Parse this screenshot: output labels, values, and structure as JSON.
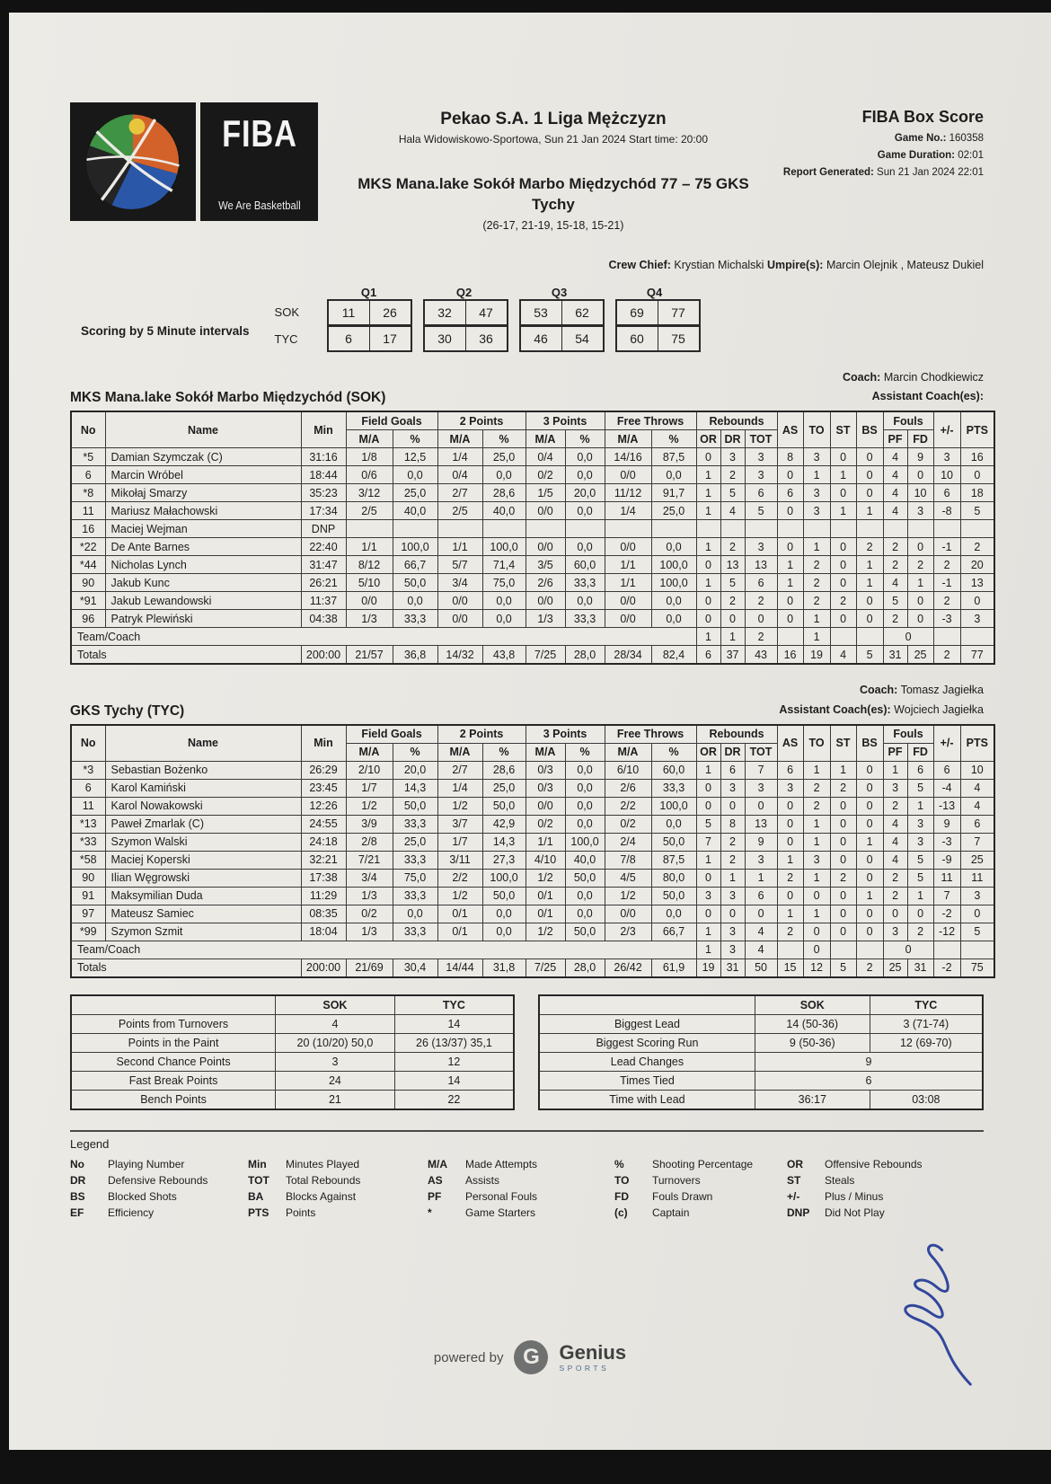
{
  "header": {
    "league": "Pekao S.A. 1 Liga Mężczyzn",
    "venue_line": "Hala Widowiskowo-Sportowa, Sun 21 Jan 2024 Start time: 20:00",
    "matchup_line1": "MKS Mana.lake Sokół Marbo Międzychód 77 – 75 GKS",
    "matchup_line2": "Tychy",
    "quarters_line": "(26-17, 21-19, 15-18, 15-21)",
    "box_score_title": "FIBA Box Score",
    "meta": [
      {
        "label": "Game No.:",
        "value": "160358"
      },
      {
        "label": "Game Duration:",
        "value": "02:01"
      },
      {
        "label": "Report Generated:",
        "value": "Sun 21 Jan 2024 22:01"
      }
    ],
    "crew": {
      "crew_chief_label": "Crew Chief:",
      "crew_chief": "Krystian Michalski",
      "umpires_label": "Umpire(s):",
      "umpires": "Marcin Olejnik , Mateusz Dukiel"
    },
    "fiba_logo_text": "FIBA",
    "fiba_logo_tagline": "We Are Basketball"
  },
  "intervals": {
    "label": "Scoring by 5 Minute intervals",
    "quarter_labels": [
      "Q1",
      "Q2",
      "Q3",
      "Q4"
    ],
    "rows": [
      {
        "team": "SOK",
        "values": [
          [
            "11",
            "26"
          ],
          [
            "32",
            "47"
          ],
          [
            "53",
            "62"
          ],
          [
            "69",
            "77"
          ]
        ]
      },
      {
        "team": "TYC",
        "values": [
          [
            "6",
            "17"
          ],
          [
            "30",
            "36"
          ],
          [
            "46",
            "54"
          ],
          [
            "60",
            "75"
          ]
        ]
      }
    ]
  },
  "table_headers": {
    "no": "No",
    "name": "Name",
    "min": "Min",
    "field_goals": "Field Goals",
    "two_points": "2 Points",
    "three_points": "3 Points",
    "free_throws": "Free Throws",
    "rebounds": "Rebounds",
    "ma": "M/A",
    "pct": "%",
    "or": "OR",
    "dr": "DR",
    "tot": "TOT",
    "as": "AS",
    "to": "TO",
    "st": "ST",
    "bs": "BS",
    "fouls": "Fouls",
    "pf": "PF",
    "fd": "FD",
    "plusminus": "+/-",
    "pts": "PTS",
    "team_coach": "Team/Coach",
    "totals": "Totals"
  },
  "teams": [
    {
      "title": "MKS Mana.lake Sokół Marbo Międzychód (SOK)",
      "coach_label": "Coach:",
      "coach": "Marcin Chodkiewicz",
      "assistant_label": "Assistant Coach(es):",
      "assistant": "",
      "players": [
        [
          "*5",
          "Damian Szymczak (C)",
          "31:16",
          "1/8",
          "12,5",
          "1/4",
          "25,0",
          "0/4",
          "0,0",
          "14/16",
          "87,5",
          "0",
          "3",
          "3",
          "8",
          "3",
          "0",
          "0",
          "4",
          "9",
          "3",
          "16"
        ],
        [
          "6",
          "Marcin Wróbel",
          "18:44",
          "0/6",
          "0,0",
          "0/4",
          "0,0",
          "0/2",
          "0,0",
          "0/0",
          "0,0",
          "1",
          "2",
          "3",
          "0",
          "1",
          "1",
          "0",
          "4",
          "0",
          "10",
          "0"
        ],
        [
          "*8",
          "Mikołaj Smarzy",
          "35:23",
          "3/12",
          "25,0",
          "2/7",
          "28,6",
          "1/5",
          "20,0",
          "11/12",
          "91,7",
          "1",
          "5",
          "6",
          "6",
          "3",
          "0",
          "0",
          "4",
          "10",
          "6",
          "18"
        ],
        [
          "11",
          "Mariusz Małachowski",
          "17:34",
          "2/5",
          "40,0",
          "2/5",
          "40,0",
          "0/0",
          "0,0",
          "1/4",
          "25,0",
          "1",
          "4",
          "5",
          "0",
          "3",
          "1",
          "1",
          "4",
          "3",
          "-8",
          "5"
        ],
        [
          "16",
          "Maciej Wejman",
          "DNP",
          "",
          "",
          "",
          "",
          "",
          "",
          "",
          "",
          "",
          "",
          "",
          "",
          "",
          "",
          "",
          "",
          "",
          "",
          ""
        ],
        [
          "*22",
          "De Ante Barnes",
          "22:40",
          "1/1",
          "100,0",
          "1/1",
          "100,0",
          "0/0",
          "0,0",
          "0/0",
          "0,0",
          "1",
          "2",
          "3",
          "0",
          "1",
          "0",
          "2",
          "2",
          "0",
          "-1",
          "2"
        ],
        [
          "*44",
          "Nicholas Lynch",
          "31:47",
          "8/12",
          "66,7",
          "5/7",
          "71,4",
          "3/5",
          "60,0",
          "1/1",
          "100,0",
          "0",
          "13",
          "13",
          "1",
          "2",
          "0",
          "1",
          "2",
          "2",
          "2",
          "20"
        ],
        [
          "90",
          "Jakub Kunc",
          "26:21",
          "5/10",
          "50,0",
          "3/4",
          "75,0",
          "2/6",
          "33,3",
          "1/1",
          "100,0",
          "1",
          "5",
          "6",
          "1",
          "2",
          "0",
          "1",
          "4",
          "1",
          "-1",
          "13"
        ],
        [
          "*91",
          "Jakub Lewandowski",
          "11:37",
          "0/0",
          "0,0",
          "0/0",
          "0,0",
          "0/0",
          "0,0",
          "0/0",
          "0,0",
          "0",
          "2",
          "2",
          "0",
          "2",
          "2",
          "0",
          "5",
          "0",
          "2",
          "0"
        ],
        [
          "96",
          "Patryk Plewiński",
          "04:38",
          "1/3",
          "33,3",
          "0/0",
          "0,0",
          "1/3",
          "33,3",
          "0/0",
          "0,0",
          "0",
          "0",
          "0",
          "0",
          "1",
          "0",
          "0",
          "2",
          "0",
          "-3",
          "3"
        ]
      ],
      "team_coach_row": {
        "or": "1",
        "dr": "1",
        "tot": "2",
        "to": "1",
        "pf": "0"
      },
      "totals": [
        "200:00",
        "21/57",
        "36,8",
        "14/32",
        "43,8",
        "7/25",
        "28,0",
        "28/34",
        "82,4",
        "6",
        "37",
        "43",
        "16",
        "19",
        "4",
        "5",
        "31",
        "25",
        "2",
        "77"
      ]
    },
    {
      "title": "GKS Tychy (TYC)",
      "coach_label": "Coach:",
      "coach": "Tomasz Jagiełka",
      "assistant_label": "Assistant Coach(es):",
      "assistant": "Wojciech Jagiełka",
      "players": [
        [
          "*3",
          "Sebastian Bożenko",
          "26:29",
          "2/10",
          "20,0",
          "2/7",
          "28,6",
          "0/3",
          "0,0",
          "6/10",
          "60,0",
          "1",
          "6",
          "7",
          "6",
          "1",
          "1",
          "0",
          "1",
          "6",
          "6",
          "10"
        ],
        [
          "6",
          "Karol Kamiński",
          "23:45",
          "1/7",
          "14,3",
          "1/4",
          "25,0",
          "0/3",
          "0,0",
          "2/6",
          "33,3",
          "0",
          "3",
          "3",
          "3",
          "2",
          "2",
          "0",
          "3",
          "5",
          "-4",
          "4"
        ],
        [
          "11",
          "Karol Nowakowski",
          "12:26",
          "1/2",
          "50,0",
          "1/2",
          "50,0",
          "0/0",
          "0,0",
          "2/2",
          "100,0",
          "0",
          "0",
          "0",
          "0",
          "2",
          "0",
          "0",
          "2",
          "1",
          "-13",
          "4"
        ],
        [
          "*13",
          "Paweł Zmarlak (C)",
          "24:55",
          "3/9",
          "33,3",
          "3/7",
          "42,9",
          "0/2",
          "0,0",
          "0/2",
          "0,0",
          "5",
          "8",
          "13",
          "0",
          "1",
          "0",
          "0",
          "4",
          "3",
          "9",
          "6"
        ],
        [
          "*33",
          "Szymon Walski",
          "24:18",
          "2/8",
          "25,0",
          "1/7",
          "14,3",
          "1/1",
          "100,0",
          "2/4",
          "50,0",
          "7",
          "2",
          "9",
          "0",
          "1",
          "0",
          "1",
          "4",
          "3",
          "-3",
          "7"
        ],
        [
          "*58",
          "Maciej Koperski",
          "32:21",
          "7/21",
          "33,3",
          "3/11",
          "27,3",
          "4/10",
          "40,0",
          "7/8",
          "87,5",
          "1",
          "2",
          "3",
          "1",
          "3",
          "0",
          "0",
          "4",
          "5",
          "-9",
          "25"
        ],
        [
          "90",
          "Ilian Węgrowski",
          "17:38",
          "3/4",
          "75,0",
          "2/2",
          "100,0",
          "1/2",
          "50,0",
          "4/5",
          "80,0",
          "0",
          "1",
          "1",
          "2",
          "1",
          "2",
          "0",
          "2",
          "5",
          "11",
          "11"
        ],
        [
          "91",
          "Maksymilian Duda",
          "11:29",
          "1/3",
          "33,3",
          "1/2",
          "50,0",
          "0/1",
          "0,0",
          "1/2",
          "50,0",
          "3",
          "3",
          "6",
          "0",
          "0",
          "0",
          "1",
          "2",
          "1",
          "7",
          "3"
        ],
        [
          "97",
          "Mateusz Samiec",
          "08:35",
          "0/2",
          "0,0",
          "0/1",
          "0,0",
          "0/1",
          "0,0",
          "0/0",
          "0,0",
          "0",
          "0",
          "0",
          "1",
          "1",
          "0",
          "0",
          "0",
          "0",
          "-2",
          "0"
        ],
        [
          "*99",
          "Szymon Szmit",
          "18:04",
          "1/3",
          "33,3",
          "0/1",
          "0,0",
          "1/2",
          "50,0",
          "2/3",
          "66,7",
          "1",
          "3",
          "4",
          "2",
          "0",
          "0",
          "0",
          "3",
          "2",
          "-12",
          "5"
        ]
      ],
      "team_coach_row": {
        "or": "1",
        "dr": "3",
        "tot": "4",
        "to": "0",
        "pf": "0"
      },
      "totals": [
        "200:00",
        "21/69",
        "30,4",
        "14/44",
        "31,8",
        "7/25",
        "28,0",
        "26/42",
        "61,9",
        "19",
        "31",
        "50",
        "15",
        "12",
        "5",
        "2",
        "25",
        "31",
        "-2",
        "75"
      ]
    }
  ],
  "summary_left": {
    "col_headers": [
      "SOK",
      "TYC"
    ],
    "rows": [
      [
        "Points from Turnovers",
        "4",
        "14"
      ],
      [
        "Points in the Paint",
        "20 (10/20) 50,0",
        "26 (13/37) 35,1"
      ],
      [
        "Second Chance Points",
        "3",
        "12"
      ],
      [
        "Fast Break Points",
        "24",
        "14"
      ],
      [
        "Bench Points",
        "21",
        "22"
      ]
    ]
  },
  "summary_right": {
    "col_headers": [
      "SOK",
      "TYC"
    ],
    "rows": [
      [
        "Biggest Lead",
        "14 (50-36)",
        "3 (71-74)"
      ],
      [
        "Biggest Scoring Run",
        "9 (50-36)",
        "12 (69-70)"
      ],
      [
        "Lead Changes",
        "9",
        null
      ],
      [
        "Times Tied",
        "6",
        null
      ],
      [
        "Time with Lead",
        "36:17",
        "03:08"
      ]
    ]
  },
  "legend": {
    "title": "Legend",
    "rows": [
      [
        [
          "No",
          "Playing Number"
        ],
        [
          "Min",
          "Minutes Played"
        ],
        [
          "M/A",
          "Made Attempts"
        ],
        [
          "%",
          "Shooting Percentage"
        ],
        [
          "OR",
          "Offensive Rebounds"
        ]
      ],
      [
        [
          "DR",
          "Defensive Rebounds"
        ],
        [
          "TOT",
          "Total Rebounds"
        ],
        [
          "AS",
          "Assists"
        ],
        [
          "TO",
          "Turnovers"
        ],
        [
          "ST",
          "Steals"
        ]
      ],
      [
        [
          "BS",
          "Blocked Shots"
        ],
        [
          "BA",
          "Blocks Against"
        ],
        [
          "PF",
          "Personal Fouls"
        ],
        [
          "FD",
          "Fouls Drawn"
        ],
        [
          "+/-",
          "Plus / Minus"
        ]
      ],
      [
        [
          "EF",
          "Efficiency"
        ],
        [
          "PTS",
          "Points"
        ],
        [
          "*",
          "Game Starters"
        ],
        [
          "(c)",
          "Captain"
        ],
        [
          "DNP",
          "Did Not Play"
        ]
      ]
    ]
  },
  "footer": {
    "powered_by": "powered by",
    "brand": "Genius",
    "brand_sub": "SPORTS",
    "logo_letter": "G"
  }
}
